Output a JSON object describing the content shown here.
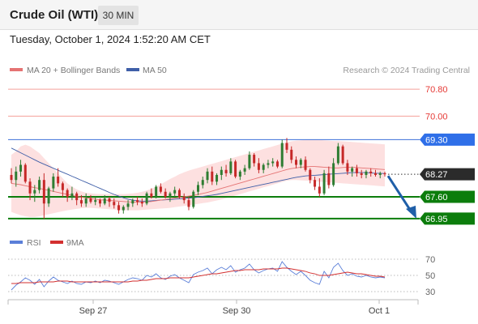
{
  "header": {
    "title": "Crude Oil (WTI)",
    "timeframe": "30 MIN"
  },
  "datetime": "Tuesday, October 1, 2024 1:52:20 AM CET",
  "legend": {
    "ma20": "MA 20 + Bollinger Bands",
    "ma50": "MA 50",
    "credit": "Research © 2024 Trading Central"
  },
  "rsi_legend": {
    "rsi": "RSI",
    "ma9": "9MA"
  },
  "colors": {
    "resistance": "#f4a09a",
    "pivot": "#3b6fd8",
    "pivot_tag": "#2f6fe8",
    "support": "#0c7d0c",
    "up": "#2e7d32",
    "down": "#c62828",
    "ma20": "#e57373",
    "ma50": "#3f5fa8",
    "bands": "#fde0e0",
    "rsi": "#5b7fd8",
    "rsi_ma": "#d32f2f",
    "arrow": "#1f5fa8"
  },
  "chart_data": [
    {
      "type": "candlestick",
      "title": "Crude Oil (WTI)",
      "ylim": [
        66.9,
        70.9
      ],
      "x_ticks": [
        "Sep 27",
        "Sep 30",
        "Oct 1"
      ],
      "levels": [
        {
          "value": 70.8,
          "label": "70.80",
          "kind": "resistance"
        },
        {
          "value": 70.0,
          "label": "70.00",
          "kind": "resistance"
        },
        {
          "value": 69.3,
          "label": "69.30",
          "kind": "pivot"
        },
        {
          "value": 67.6,
          "label": "67.60",
          "kind": "support"
        },
        {
          "value": 66.95,
          "label": "66.95",
          "kind": "support"
        }
      ],
      "last_price": {
        "value": 68.27,
        "label": "68.27"
      },
      "forecast": {
        "from": 68.27,
        "to": 66.95,
        "direction": "down"
      },
      "ohlc": [
        [
          68.25,
          68.45,
          68.0,
          68.1
        ],
        [
          68.1,
          68.5,
          67.9,
          68.35
        ],
        [
          68.35,
          68.7,
          68.2,
          68.55
        ],
        [
          68.55,
          68.6,
          68.0,
          68.05
        ],
        [
          68.05,
          68.15,
          67.5,
          67.7
        ],
        [
          67.7,
          67.95,
          67.45,
          67.8
        ],
        [
          67.8,
          68.2,
          67.7,
          68.1
        ],
        [
          68.1,
          68.3,
          66.95,
          67.4
        ],
        [
          67.4,
          67.9,
          67.3,
          67.85
        ],
        [
          67.85,
          68.3,
          67.75,
          68.2
        ],
        [
          68.2,
          68.45,
          67.9,
          68.0
        ],
        [
          68.0,
          68.05,
          67.6,
          67.8
        ],
        [
          67.8,
          67.85,
          67.45,
          67.6
        ],
        [
          67.6,
          67.9,
          67.5,
          67.7
        ],
        [
          67.7,
          67.75,
          67.35,
          67.5
        ],
        [
          67.5,
          67.65,
          67.3,
          67.4
        ],
        [
          67.4,
          67.7,
          67.3,
          67.55
        ],
        [
          67.55,
          67.65,
          67.4,
          67.45
        ],
        [
          67.45,
          67.6,
          67.35,
          67.5
        ],
        [
          67.5,
          67.55,
          67.3,
          67.4
        ],
        [
          67.4,
          67.65,
          67.35,
          67.55
        ],
        [
          67.55,
          67.6,
          67.3,
          67.45
        ],
        [
          67.45,
          67.55,
          67.25,
          67.35
        ],
        [
          67.35,
          67.45,
          67.1,
          67.2
        ],
        [
          67.2,
          67.35,
          67.1,
          67.3
        ],
        [
          67.3,
          67.5,
          67.2,
          67.4
        ],
        [
          67.4,
          67.55,
          67.3,
          67.5
        ],
        [
          67.5,
          67.6,
          67.35,
          67.45
        ],
        [
          67.45,
          67.55,
          67.3,
          67.4
        ],
        [
          67.4,
          67.75,
          67.35,
          67.7
        ],
        [
          67.7,
          67.85,
          67.55,
          67.6
        ],
        [
          67.6,
          67.95,
          67.55,
          67.9
        ],
        [
          67.9,
          68.0,
          67.7,
          67.75
        ],
        [
          67.75,
          67.85,
          67.55,
          67.6
        ],
        [
          67.6,
          67.75,
          67.45,
          67.7
        ],
        [
          67.7,
          67.9,
          67.6,
          67.8
        ],
        [
          67.8,
          67.85,
          67.55,
          67.6
        ],
        [
          67.6,
          67.7,
          67.4,
          67.5
        ],
        [
          67.5,
          67.6,
          67.2,
          67.3
        ],
        [
          67.3,
          67.8,
          67.25,
          67.75
        ],
        [
          67.75,
          68.05,
          67.65,
          67.95
        ],
        [
          67.95,
          68.2,
          67.85,
          68.1
        ],
        [
          68.1,
          68.45,
          68.0,
          68.35
        ],
        [
          68.35,
          68.5,
          67.95,
          68.05
        ],
        [
          68.05,
          68.3,
          67.95,
          68.25
        ],
        [
          68.25,
          68.5,
          68.1,
          68.4
        ],
        [
          68.4,
          68.55,
          68.2,
          68.3
        ],
        [
          68.3,
          68.75,
          68.25,
          68.65
        ],
        [
          68.65,
          68.7,
          68.15,
          68.2
        ],
        [
          68.2,
          68.4,
          68.1,
          68.35
        ],
        [
          68.35,
          68.55,
          68.25,
          68.45
        ],
        [
          68.45,
          68.95,
          68.4,
          68.85
        ],
        [
          68.85,
          68.9,
          68.5,
          68.6
        ],
        [
          68.6,
          68.75,
          68.3,
          68.4
        ],
        [
          68.4,
          68.6,
          68.3,
          68.55
        ],
        [
          68.55,
          68.7,
          68.45,
          68.6
        ],
        [
          68.6,
          68.75,
          68.5,
          68.65
        ],
        [
          68.65,
          68.7,
          68.45,
          68.5
        ],
        [
          68.5,
          69.3,
          68.45,
          69.2
        ],
        [
          69.2,
          69.35,
          68.9,
          69.0
        ],
        [
          69.0,
          69.1,
          68.6,
          68.7
        ],
        [
          68.7,
          68.8,
          68.45,
          68.55
        ],
        [
          68.55,
          68.75,
          68.45,
          68.7
        ],
        [
          68.7,
          68.8,
          68.35,
          68.4
        ],
        [
          68.4,
          68.45,
          68.0,
          68.1
        ],
        [
          68.1,
          68.2,
          67.8,
          67.9
        ],
        [
          67.9,
          68.15,
          67.6,
          67.7
        ],
        [
          67.7,
          68.4,
          67.65,
          68.3
        ],
        [
          68.3,
          68.5,
          67.85,
          67.95
        ],
        [
          67.95,
          68.75,
          67.9,
          68.6
        ],
        [
          68.6,
          69.2,
          68.55,
          69.1
        ],
        [
          69.1,
          69.15,
          68.55,
          68.6
        ],
        [
          68.6,
          68.7,
          68.25,
          68.35
        ],
        [
          68.35,
          68.5,
          68.2,
          68.45
        ],
        [
          68.45,
          68.55,
          68.2,
          68.3
        ],
        [
          68.3,
          68.4,
          68.15,
          68.25
        ],
        [
          68.25,
          68.4,
          68.15,
          68.35
        ],
        [
          68.35,
          68.45,
          68.2,
          68.3
        ],
        [
          68.3,
          68.4,
          68.2,
          68.25
        ],
        [
          68.25,
          68.35,
          68.15,
          68.3
        ],
        [
          68.3,
          68.35,
          68.2,
          68.27
        ]
      ],
      "ma20": [
        68.0,
        67.98,
        67.96,
        67.93,
        67.9,
        67.87,
        67.85,
        67.82,
        67.79,
        67.76,
        67.73,
        67.7,
        67.67,
        67.64,
        67.61,
        67.59,
        67.57,
        67.55,
        67.53,
        67.51,
        67.5,
        67.49,
        67.48,
        67.47,
        67.46,
        67.45,
        67.44,
        67.44,
        67.44,
        67.45,
        67.46,
        67.48,
        67.5,
        67.52,
        67.54,
        67.56,
        67.58,
        67.6,
        67.62,
        67.64,
        67.67,
        67.7,
        67.73,
        67.77,
        67.81,
        67.85,
        67.89,
        67.93,
        67.97,
        68.01,
        68.05,
        68.09,
        68.13,
        68.17,
        68.21,
        68.25,
        68.29,
        68.33,
        68.37,
        68.41,
        68.44,
        68.46,
        68.48,
        68.49,
        68.5,
        68.5,
        68.49,
        68.48,
        68.47,
        68.46,
        68.46,
        68.47,
        68.48,
        68.48,
        68.47,
        68.46,
        68.45,
        68.44,
        68.43,
        68.42,
        68.41
      ],
      "ma50": [
        69.05,
        68.98,
        68.91,
        68.84,
        68.77,
        68.7,
        68.63,
        68.57,
        68.51,
        68.45,
        68.39,
        68.33,
        68.27,
        68.21,
        68.15,
        68.09,
        68.03,
        67.97,
        67.91,
        67.85,
        67.79,
        67.73,
        67.67,
        67.62,
        67.57,
        67.53,
        67.5,
        67.48,
        67.47,
        67.47,
        67.48,
        67.49,
        67.5,
        67.51,
        67.52,
        67.53,
        67.54,
        67.55,
        67.56,
        67.57,
        67.59,
        67.61,
        67.63,
        67.65,
        67.67,
        67.7,
        67.73,
        67.76,
        67.79,
        67.82,
        67.85,
        67.88,
        67.91,
        67.94,
        67.97,
        68.0,
        68.03,
        68.06,
        68.09,
        68.12,
        68.15,
        68.18,
        68.2,
        68.22,
        68.23,
        68.24,
        68.25,
        68.26,
        68.27,
        68.28,
        68.29,
        68.3,
        68.31,
        68.32,
        68.32,
        68.32,
        68.32,
        68.31,
        68.3,
        68.3,
        68.29
      ],
      "band_upper": [
        68.85,
        68.95,
        69.1,
        69.15,
        69.1,
        69.0,
        68.9,
        68.75,
        68.6,
        68.45,
        68.3,
        68.15,
        68.0,
        67.9,
        67.82,
        67.76,
        67.72,
        67.7,
        67.69,
        67.68,
        67.68,
        67.68,
        67.68,
        67.68,
        67.68,
        67.69,
        67.7,
        67.72,
        67.75,
        67.79,
        67.84,
        67.9,
        67.97,
        68.05,
        68.13,
        68.2,
        68.27,
        68.33,
        68.38,
        68.42,
        68.46,
        68.5,
        68.54,
        68.58,
        68.62,
        68.66,
        68.7,
        68.74,
        68.78,
        68.82,
        68.86,
        68.9,
        68.94,
        68.98,
        69.02,
        69.06,
        69.1,
        69.14,
        69.18,
        69.22,
        69.25,
        69.27,
        69.28,
        69.29,
        69.3,
        69.3,
        69.29,
        69.28,
        69.27,
        69.26,
        69.26,
        69.25,
        69.24,
        69.23,
        69.22,
        69.21,
        69.2,
        69.19,
        69.18,
        69.17,
        69.16
      ],
      "band_lower": [
        67.15,
        67.1,
        67.05,
        67.02,
        67.0,
        67.0,
        67.02,
        67.05,
        67.08,
        67.11,
        67.14,
        67.17,
        67.2,
        67.22,
        67.24,
        67.26,
        67.27,
        67.27,
        67.26,
        67.25,
        67.24,
        67.23,
        67.22,
        67.21,
        67.2,
        67.2,
        67.2,
        67.2,
        67.21,
        67.22,
        67.23,
        67.24,
        67.25,
        67.26,
        67.27,
        67.29,
        67.31,
        67.33,
        67.35,
        67.37,
        67.39,
        67.41,
        67.43,
        67.46,
        67.49,
        67.52,
        67.56,
        67.6,
        67.64,
        67.68,
        67.72,
        67.76,
        67.8,
        67.84,
        67.88,
        67.92,
        67.96,
        68.0,
        68.04,
        68.08,
        68.1,
        68.1,
        68.09,
        68.08,
        68.07,
        68.06,
        68.05,
        68.04,
        68.03,
        68.02,
        68.01,
        68.0,
        67.99,
        67.98,
        67.97,
        67.96,
        67.95,
        67.94,
        67.93,
        67.92,
        67.91
      ]
    },
    {
      "type": "line",
      "ylim": [
        25,
        75
      ],
      "y_ticks": [
        70,
        50,
        30
      ],
      "series": [
        {
          "name": "RSI",
          "values": [
            32,
            38,
            42,
            47,
            44,
            39,
            45,
            36,
            43,
            48,
            44,
            42,
            40,
            43,
            40,
            39,
            42,
            41,
            43,
            41,
            44,
            43,
            41,
            39,
            42,
            45,
            47,
            46,
            44,
            50,
            48,
            52,
            47,
            45,
            49,
            51,
            47,
            44,
            41,
            51,
            54,
            56,
            59,
            52,
            57,
            60,
            57,
            62,
            54,
            57,
            59,
            64,
            57,
            53,
            56,
            58,
            59,
            55,
            67,
            60,
            55,
            51,
            55,
            50,
            44,
            41,
            39,
            55,
            47,
            60,
            65,
            56,
            50,
            52,
            49,
            48,
            50,
            48,
            47,
            48,
            47
          ]
        },
        {
          "name": "9MA",
          "values": [
            40,
            40,
            41,
            41,
            41,
            41,
            42,
            42,
            42,
            42,
            43,
            43,
            43,
            42,
            42,
            42,
            42,
            42,
            42,
            42,
            42,
            42,
            42,
            42,
            42,
            42,
            43,
            43,
            44,
            44,
            45,
            46,
            46,
            46,
            47,
            47,
            47,
            47,
            47,
            48,
            49,
            50,
            51,
            52,
            52,
            53,
            54,
            55,
            56,
            56,
            57,
            57,
            57,
            57,
            58,
            58,
            58,
            58,
            59,
            59,
            58,
            57,
            56,
            55,
            53,
            52,
            50,
            50,
            50,
            51,
            52,
            53,
            54,
            53,
            52,
            52,
            51,
            50,
            49,
            49,
            48
          ]
        }
      ]
    }
  ]
}
